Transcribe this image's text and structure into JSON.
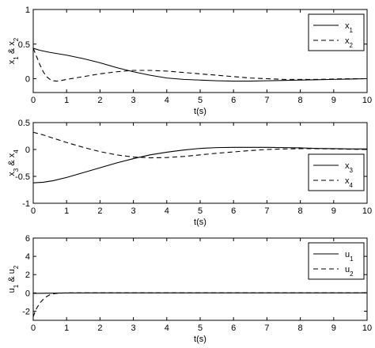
{
  "chart_data": [
    {
      "type": "line",
      "xlabel": "t(s)",
      "ylabel": "x_1 & x_2",
      "xlim": [
        0,
        10
      ],
      "ylim": [
        -0.2,
        1
      ],
      "xticks": [
        0,
        1,
        2,
        3,
        4,
        5,
        6,
        7,
        8,
        9,
        10
      ],
      "yticks": [
        0,
        0.5,
        1
      ],
      "legend_position": "top-right",
      "series": [
        {
          "name": "x_1",
          "style": "solid",
          "color": "#000000",
          "x": [
            0,
            0.2,
            0.5,
            1,
            1.5,
            2,
            2.5,
            3,
            3.5,
            4,
            4.5,
            5,
            5.5,
            6,
            6.5,
            7,
            7.5,
            8,
            8.5,
            9,
            9.5,
            10
          ],
          "y": [
            0.44,
            0.41,
            0.38,
            0.34,
            0.29,
            0.23,
            0.16,
            0.1,
            0.05,
            0.01,
            -0.01,
            -0.02,
            -0.03,
            -0.035,
            -0.035,
            -0.03,
            -0.025,
            -0.02,
            -0.015,
            -0.01,
            -0.005,
            0.0
          ]
        },
        {
          "name": "x_2",
          "style": "dashed",
          "color": "#000000",
          "x": [
            0,
            0.1,
            0.2,
            0.3,
            0.4,
            0.5,
            0.6,
            0.7,
            0.8,
            1,
            1.5,
            2,
            2.5,
            3,
            3.5,
            4,
            4.5,
            5,
            5.5,
            6,
            6.5,
            7,
            7.5,
            8,
            8.5,
            9,
            9.5,
            10
          ],
          "y": [
            0.44,
            0.32,
            0.2,
            0.1,
            0.03,
            -0.01,
            -0.03,
            -0.035,
            -0.03,
            -0.01,
            0.03,
            0.07,
            0.1,
            0.12,
            0.12,
            0.11,
            0.09,
            0.07,
            0.05,
            0.03,
            0.01,
            0.0,
            -0.01,
            -0.01,
            -0.01,
            -0.005,
            0.0,
            0.0
          ]
        }
      ]
    },
    {
      "type": "line",
      "xlabel": "t(s)",
      "ylabel": "x_3 & x_4",
      "xlim": [
        0,
        10
      ],
      "ylim": [
        -1,
        0.5
      ],
      "xticks": [
        0,
        1,
        2,
        3,
        4,
        5,
        6,
        7,
        8,
        9,
        10
      ],
      "yticks": [
        -1,
        -0.5,
        0,
        0.5
      ],
      "legend_position": "right",
      "series": [
        {
          "name": "x_3",
          "style": "solid",
          "color": "#000000",
          "x": [
            0,
            0.3,
            0.6,
            1,
            1.5,
            2,
            2.5,
            3,
            3.5,
            4,
            4.5,
            5,
            5.5,
            6,
            6.5,
            7,
            7.5,
            8,
            8.5,
            9,
            9.5,
            10
          ],
          "y": [
            -0.62,
            -0.61,
            -0.58,
            -0.52,
            -0.43,
            -0.34,
            -0.25,
            -0.17,
            -0.1,
            -0.05,
            -0.01,
            0.02,
            0.035,
            0.04,
            0.04,
            0.04,
            0.035,
            0.03,
            0.02,
            0.015,
            0.01,
            0.01
          ]
        },
        {
          "name": "x_4",
          "style": "dashed",
          "color": "#000000",
          "x": [
            0,
            0.3,
            0.6,
            1,
            1.5,
            2,
            2.5,
            3,
            3.5,
            4,
            4.5,
            5,
            5.5,
            6,
            6.5,
            7,
            7.5,
            8,
            8.5,
            9,
            9.5,
            10
          ],
          "y": [
            0.32,
            0.27,
            0.21,
            0.13,
            0.04,
            -0.04,
            -0.1,
            -0.14,
            -0.155,
            -0.15,
            -0.13,
            -0.1,
            -0.07,
            -0.045,
            -0.02,
            0.0,
            0.01,
            0.015,
            0.015,
            0.01,
            0.005,
            0.0
          ]
        }
      ]
    },
    {
      "type": "line",
      "xlabel": "t(s)",
      "ylabel": "u_1 & u_2",
      "xlim": [
        0,
        10
      ],
      "ylim": [
        -3,
        6
      ],
      "xticks": [
        0,
        1,
        2,
        3,
        4,
        5,
        6,
        7,
        8,
        9,
        10
      ],
      "yticks": [
        -2,
        0,
        2,
        4,
        6
      ],
      "legend_position": "top-right",
      "series": [
        {
          "name": "u_1",
          "style": "solid",
          "color": "#000000",
          "x": [
            0,
            0.5,
            1,
            2,
            3,
            4,
            5,
            6,
            7,
            8,
            9,
            10
          ],
          "y": [
            -0.05,
            -0.03,
            -0.01,
            0.0,
            0.0,
            0.0,
            0.0,
            0.0,
            0.0,
            0.0,
            0.0,
            0.0
          ]
        },
        {
          "name": "u_2",
          "style": "dashed",
          "color": "#000000",
          "x": [
            0,
            0.05,
            0.1,
            0.2,
            0.3,
            0.4,
            0.5,
            0.6,
            0.7,
            0.8,
            1,
            1.5,
            2,
            3,
            4,
            5,
            6,
            7,
            8,
            9,
            10
          ],
          "y": [
            -2.6,
            -2.1,
            -1.7,
            -1.1,
            -0.7,
            -0.4,
            -0.2,
            -0.1,
            -0.05,
            -0.02,
            0.0,
            0.0,
            0.0,
            0.0,
            0.0,
            0.0,
            0.0,
            0.0,
            0.0,
            0.0,
            0.0
          ]
        }
      ]
    }
  ]
}
